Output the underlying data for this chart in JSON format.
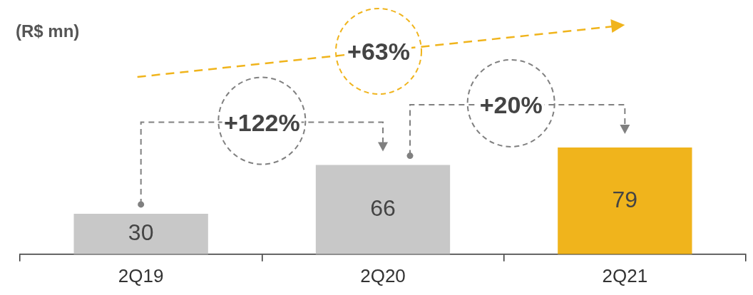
{
  "chart_data": {
    "type": "bar",
    "categories": [
      "2Q19",
      "2Q20",
      "2Q21"
    ],
    "values": [
      30,
      66,
      79
    ],
    "colors": [
      "#c8c8c8",
      "#c8c8c8",
      "#f0b41c"
    ],
    "data_labels": true,
    "annotations": [
      "(R$ mn)",
      "+122%",
      "+20%",
      "+63%"
    ],
    "grid": false,
    "legend": false,
    "tick_labels": "x"
  }
}
